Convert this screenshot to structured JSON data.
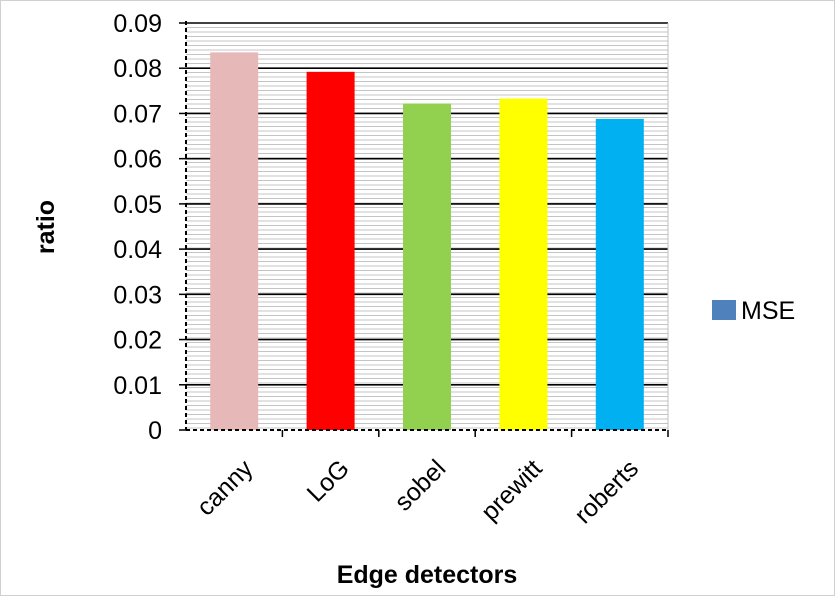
{
  "chart_data": {
    "type": "bar",
    "categories": [
      "canny",
      "LoG",
      "sobel",
      "prewitt",
      "roberts"
    ],
    "series": [
      {
        "name": "MSE",
        "values": [
          0.0835,
          0.0792,
          0.0722,
          0.0733,
          0.0688
        ]
      }
    ],
    "bar_colors": [
      "#E6B8B7",
      "#FF0000",
      "#92D050",
      "#FFFF00",
      "#00B0F0"
    ],
    "legend_color": "#4F81BD",
    "xlabel": "Edge detectors",
    "ylabel": "ratio",
    "yticks": [
      "0",
      "0.01",
      "0.02",
      "0.03",
      "0.04",
      "0.05",
      "0.06",
      "0.07",
      "0.08",
      "0.09"
    ],
    "ylim": [
      0,
      0.09
    ],
    "grid": true,
    "legend_position": "right"
  }
}
